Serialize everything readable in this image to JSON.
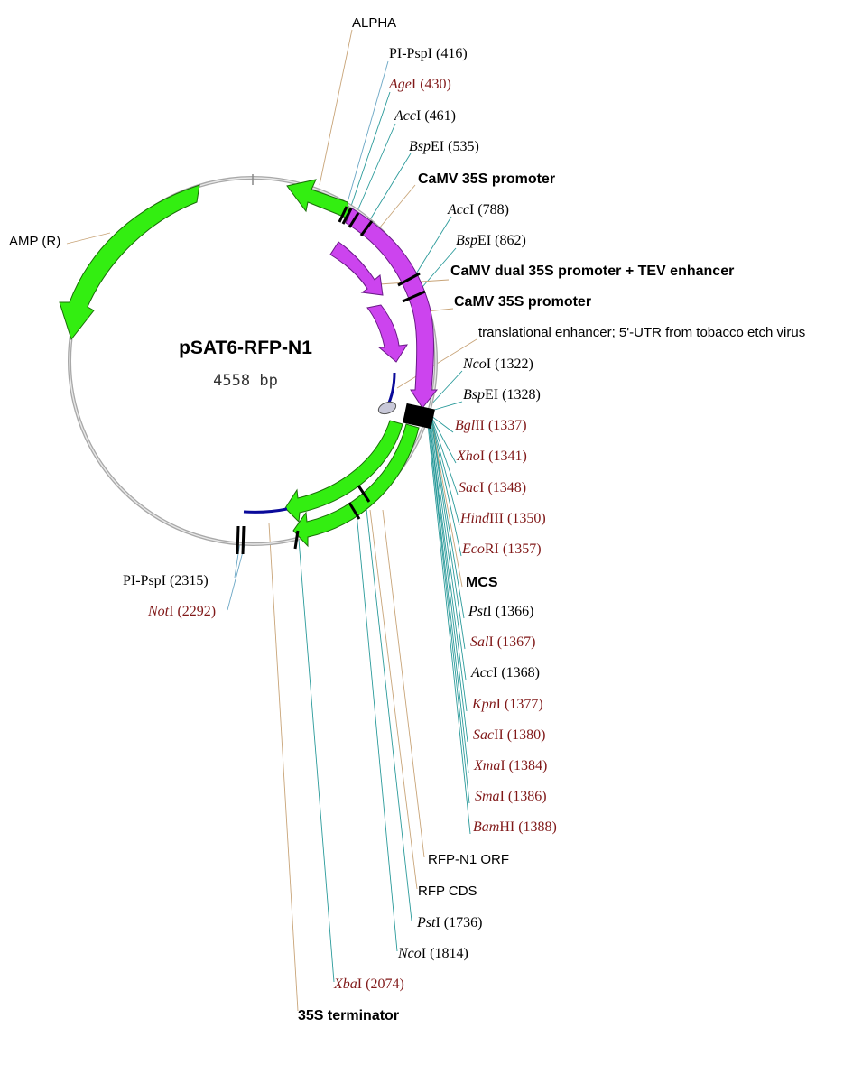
{
  "plasmid": {
    "name": "pSAT6-RFP-N1",
    "size": "4558 bp"
  },
  "colors": {
    "backbone": "#b4b4b4",
    "feature_green": "#33ee11",
    "feature_purple": "#cc44ee",
    "insert_black": "#000000",
    "blue_segment": "#0a0a9a",
    "unique_site_text": "#801818",
    "site_text": "#000000",
    "leader_site": "#2a9a9a",
    "leader_feature": "#c8a478"
  },
  "features": [
    {
      "name": "ALPHA",
      "kind": "green-arrow"
    },
    {
      "name": "AMP (R)",
      "kind": "green-arrow"
    },
    {
      "name": "CaMV 35S promoter",
      "kind": "purple-arrow"
    },
    {
      "name": "CaMV dual 35S promoter + TEV enhancer",
      "kind": "purple-arrow"
    },
    {
      "name": "CaMV 35S promoter",
      "kind": "purple-arrow"
    },
    {
      "name": "translational enhancer; 5'-UTR from tobacco etch virus",
      "kind": "block"
    },
    {
      "name": "MCS",
      "kind": "black-box"
    },
    {
      "name": "RFP-N1 ORF",
      "kind": "green-arrow"
    },
    {
      "name": "RFP CDS",
      "kind": "green-arrow"
    },
    {
      "name": "35S terminator",
      "kind": "blue-segment"
    }
  ],
  "sites": [
    {
      "italic": "",
      "rest": "PI-PspI",
      "pos": "(416)",
      "unique": false
    },
    {
      "italic": "Age",
      "rest": "I",
      "pos": "(430)",
      "unique": true
    },
    {
      "italic": "Acc",
      "rest": "I",
      "pos": "(461)",
      "unique": false
    },
    {
      "italic": "Bsp",
      "rest": "EI",
      "pos": "(535)",
      "unique": false
    },
    {
      "italic": "Acc",
      "rest": "I",
      "pos": "(788)",
      "unique": false
    },
    {
      "italic": "Bsp",
      "rest": "EI",
      "pos": "(862)",
      "unique": false
    },
    {
      "italic": "Nco",
      "rest": "I",
      "pos": "(1322)",
      "unique": false
    },
    {
      "italic": "Bsp",
      "rest": "EI",
      "pos": "(1328)",
      "unique": false
    },
    {
      "italic": "Bgl",
      "rest": "II",
      "pos": "(1337)",
      "unique": true
    },
    {
      "italic": "Xho",
      "rest": "I",
      "pos": "(1341)",
      "unique": true
    },
    {
      "italic": "Sac",
      "rest": "I",
      "pos": "(1348)",
      "unique": true
    },
    {
      "italic": "Hind",
      "rest": "III",
      "pos": "(1350)",
      "unique": true
    },
    {
      "italic": "Eco",
      "rest": "RI",
      "pos": "(1357)",
      "unique": true
    },
    {
      "italic": "Pst",
      "rest": "I",
      "pos": "(1366)",
      "unique": false
    },
    {
      "italic": "Sal",
      "rest": "I",
      "pos": "(1367)",
      "unique": true
    },
    {
      "italic": "Acc",
      "rest": "I",
      "pos": "(1368)",
      "unique": false
    },
    {
      "italic": "Kpn",
      "rest": "I",
      "pos": "(1377)",
      "unique": true
    },
    {
      "italic": "Sac",
      "rest": "II",
      "pos": "(1380)",
      "unique": true
    },
    {
      "italic": "Xma",
      "rest": "I",
      "pos": "(1384)",
      "unique": true
    },
    {
      "italic": "Sma",
      "rest": "I",
      "pos": "(1386)",
      "unique": true
    },
    {
      "italic": "Bam",
      "rest": "HI",
      "pos": "(1388)",
      "unique": true
    },
    {
      "italic": "Pst",
      "rest": "I",
      "pos": "(1736)",
      "unique": false
    },
    {
      "italic": "Nco",
      "rest": "I",
      "pos": "(1814)",
      "unique": false
    },
    {
      "italic": "Xba",
      "rest": "I",
      "pos": "(2074)",
      "unique": true
    },
    {
      "italic": "",
      "rest": "PI-PspI",
      "pos": "(2315)",
      "unique": false
    },
    {
      "italic": "Not",
      "rest": "I",
      "pos": "(2292)",
      "unique": true
    }
  ]
}
